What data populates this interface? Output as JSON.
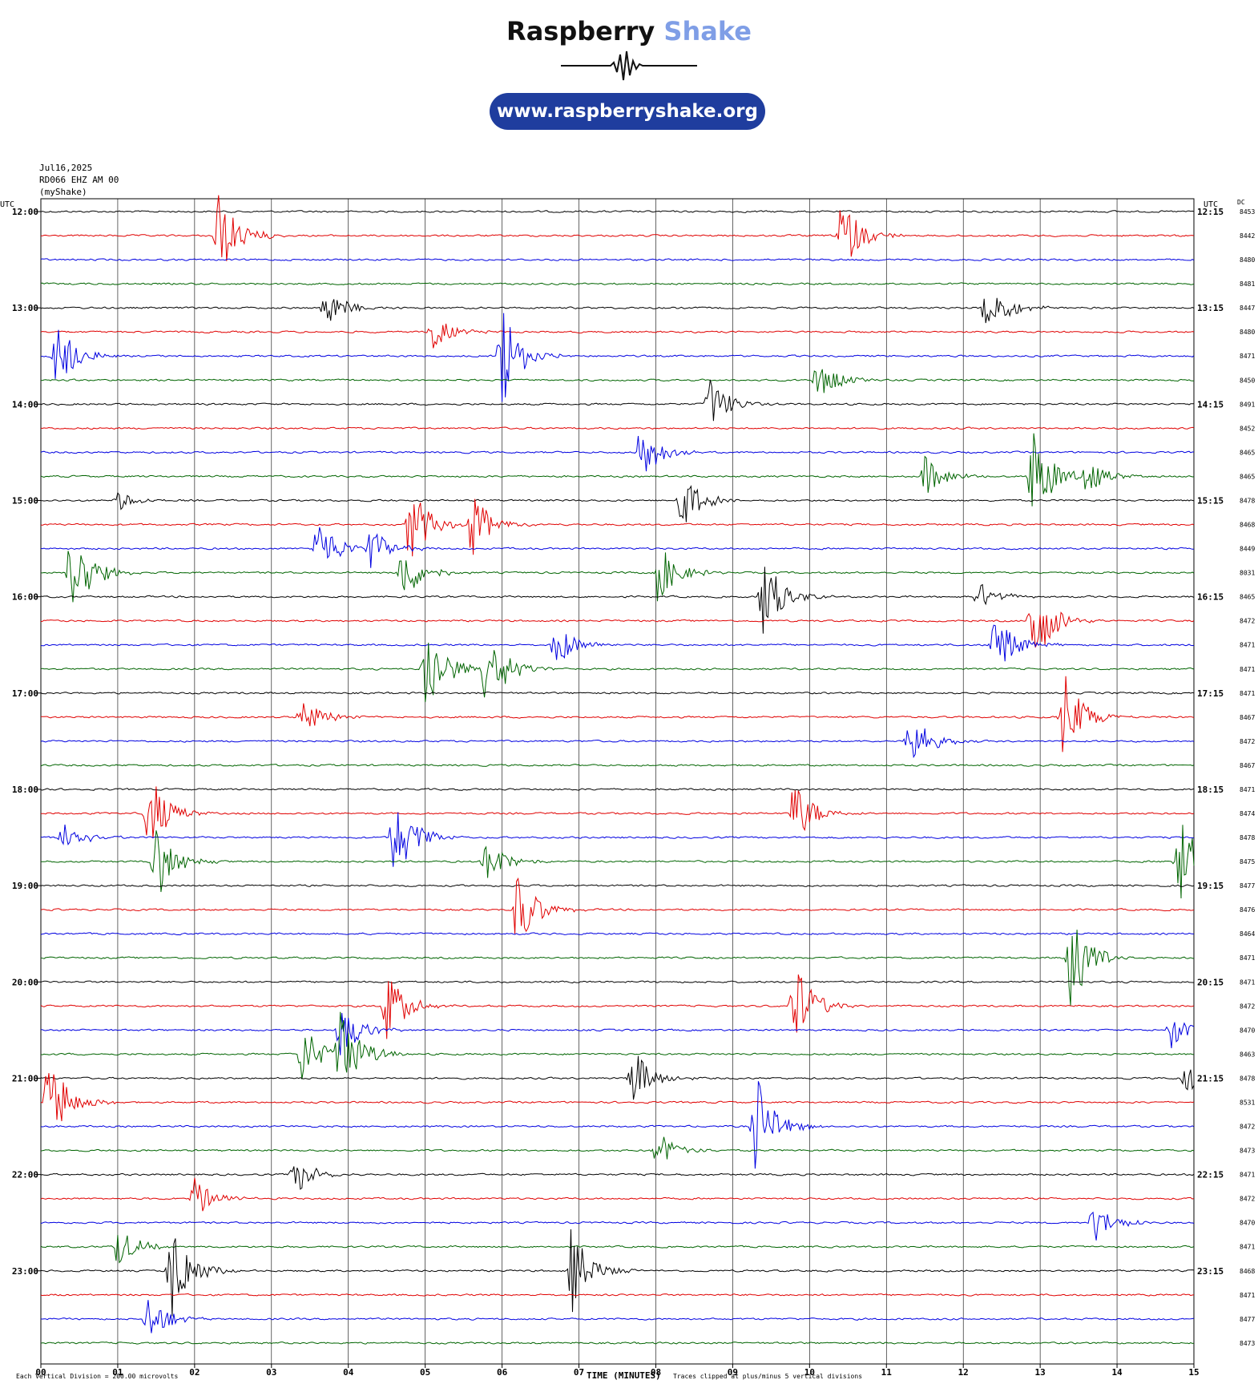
{
  "brand": {
    "name_part1": "Raspberry",
    "name_part2": "Shake",
    "url": "www.raspberryshake.org",
    "accent_color": "#7f9ee6",
    "pill_color": "#1f3d9e"
  },
  "station": {
    "date": "Jul16,2025",
    "channel": "RD066 EHZ AM 00",
    "source": "(myShake)"
  },
  "chart_data": {
    "type": "line",
    "title": "",
    "left_axis_label": "UTC",
    "right_axis_label": "UTC",
    "dc_label": "DC",
    "xlabel": "TIME (MINUTES)",
    "x_ticks": [
      "00",
      "01",
      "02",
      "03",
      "04",
      "05",
      "06",
      "07",
      "08",
      "09",
      "10",
      "11",
      "12",
      "13",
      "14",
      "15"
    ],
    "xlim": [
      0,
      15
    ],
    "scale_note": "Each Vertical Division = 200.00 microvolts",
    "clip_note": "Traces clipped at plus/minus 5 vertical divisions",
    "trace_colors": [
      "#000000",
      "#e00000",
      "#0000e0",
      "#006400"
    ],
    "left_hour_labels": [
      "12:00",
      "13:00",
      "14:00",
      "15:00",
      "16:00",
      "17:00",
      "18:00",
      "19:00",
      "20:00",
      "21:00",
      "22:00",
      "23:00"
    ],
    "right_hour_labels": [
      "12:15",
      "13:15",
      "14:15",
      "15:15",
      "16:15",
      "17:15",
      "18:15",
      "19:15",
      "20:15",
      "21:15",
      "22:15",
      "23:15"
    ],
    "dc_values": [
      "8453",
      "8442",
      "8480",
      "8481",
      "8447",
      "8480",
      "8471",
      "8450",
      "8491",
      "8452",
      "8465",
      "8465",
      "8478",
      "8468",
      "8449",
      "8031",
      "8465",
      "8472",
      "8471",
      "8471",
      "8471",
      "8467",
      "8472",
      "8467",
      "8471",
      "8474",
      "8478",
      "8475",
      "8477",
      "8476",
      "8464",
      "8471",
      "8471",
      "8472",
      "8470",
      "8463",
      "8478",
      "8531",
      "8472",
      "8473",
      "8471",
      "8472",
      "8470",
      "8471",
      "8468",
      "8471",
      "8477",
      "8473"
    ],
    "events": [
      {
        "row": 1,
        "minute": 2.3,
        "amplitude": 3.5
      },
      {
        "row": 1,
        "minute": 10.4,
        "amplitude": 3.0
      },
      {
        "row": 4,
        "minute": 3.7,
        "amplitude": 1.6
      },
      {
        "row": 4,
        "minute": 12.3,
        "amplitude": 2.5
      },
      {
        "row": 5,
        "minute": 5.1,
        "amplitude": 1.4
      },
      {
        "row": 6,
        "minute": 0.2,
        "amplitude": 2.8
      },
      {
        "row": 6,
        "minute": 6.0,
        "amplitude": 4.0
      },
      {
        "row": 7,
        "minute": 10.1,
        "amplitude": 1.6
      },
      {
        "row": 8,
        "minute": 8.7,
        "amplitude": 2.0
      },
      {
        "row": 10,
        "minute": 7.8,
        "amplitude": 2.4
      },
      {
        "row": 11,
        "minute": 11.5,
        "amplitude": 1.6
      },
      {
        "row": 11,
        "minute": 12.9,
        "amplitude": 4.0
      },
      {
        "row": 11,
        "minute": 13.6,
        "amplitude": 1.6
      },
      {
        "row": 12,
        "minute": 1.0,
        "amplitude": 0.8
      },
      {
        "row": 12,
        "minute": 8.3,
        "amplitude": 2.6
      },
      {
        "row": 13,
        "minute": 4.8,
        "amplitude": 3.2
      },
      {
        "row": 13,
        "minute": 5.6,
        "amplitude": 2.6
      },
      {
        "row": 14,
        "minute": 3.6,
        "amplitude": 2.6
      },
      {
        "row": 14,
        "minute": 4.3,
        "amplitude": 1.8
      },
      {
        "row": 15,
        "minute": 0.4,
        "amplitude": 4.0
      },
      {
        "row": 15,
        "minute": 4.7,
        "amplitude": 2.4
      },
      {
        "row": 15,
        "minute": 8.0,
        "amplitude": 2.6
      },
      {
        "row": 16,
        "minute": 9.4,
        "amplitude": 3.4
      },
      {
        "row": 16,
        "minute": 12.2,
        "amplitude": 1.2
      },
      {
        "row": 17,
        "minute": 12.9,
        "amplitude": 4.0
      },
      {
        "row": 18,
        "minute": 6.7,
        "amplitude": 1.8
      },
      {
        "row": 18,
        "minute": 12.4,
        "amplitude": 2.6
      },
      {
        "row": 19,
        "minute": 5.0,
        "amplitude": 4.0
      },
      {
        "row": 19,
        "minute": 5.8,
        "amplitude": 3.6
      },
      {
        "row": 21,
        "minute": 3.4,
        "amplitude": 1.6
      },
      {
        "row": 21,
        "minute": 13.3,
        "amplitude": 3.6
      },
      {
        "row": 22,
        "minute": 11.3,
        "amplitude": 2.4
      },
      {
        "row": 25,
        "minute": 1.4,
        "amplitude": 3.2
      },
      {
        "row": 25,
        "minute": 9.8,
        "amplitude": 2.6
      },
      {
        "row": 26,
        "minute": 0.3,
        "amplitude": 1.6
      },
      {
        "row": 26,
        "minute": 4.6,
        "amplitude": 3.6
      },
      {
        "row": 27,
        "minute": 1.5,
        "amplitude": 3.0
      },
      {
        "row": 27,
        "minute": 5.8,
        "amplitude": 1.8
      },
      {
        "row": 27,
        "minute": 14.8,
        "amplitude": 4.0
      },
      {
        "row": 29,
        "minute": 6.2,
        "amplitude": 3.2
      },
      {
        "row": 31,
        "minute": 13.4,
        "amplitude": 4.0
      },
      {
        "row": 33,
        "minute": 4.5,
        "amplitude": 2.8
      },
      {
        "row": 33,
        "minute": 9.8,
        "amplitude": 3.6
      },
      {
        "row": 34,
        "minute": 3.9,
        "amplitude": 2.2
      },
      {
        "row": 34,
        "minute": 14.7,
        "amplitude": 1.4
      },
      {
        "row": 35,
        "minute": 3.4,
        "amplitude": 2.4
      },
      {
        "row": 35,
        "minute": 3.9,
        "amplitude": 4.0
      },
      {
        "row": 36,
        "minute": 7.7,
        "amplitude": 2.4
      },
      {
        "row": 36,
        "minute": 14.9,
        "amplitude": 1.2
      },
      {
        "row": 37,
        "minute": 0.1,
        "amplitude": 4.0
      },
      {
        "row": 38,
        "minute": 9.3,
        "amplitude": 4.0
      },
      {
        "row": 39,
        "minute": 8.0,
        "amplitude": 1.6
      },
      {
        "row": 40,
        "minute": 3.3,
        "amplitude": 1.6
      },
      {
        "row": 41,
        "minute": 2.0,
        "amplitude": 1.6
      },
      {
        "row": 42,
        "minute": 13.7,
        "amplitude": 1.6
      },
      {
        "row": 43,
        "minute": 1.0,
        "amplitude": 1.6
      },
      {
        "row": 44,
        "minute": 1.7,
        "amplitude": 4.0
      },
      {
        "row": 44,
        "minute": 6.9,
        "amplitude": 3.4
      },
      {
        "row": 46,
        "minute": 1.4,
        "amplitude": 2.0
      }
    ]
  }
}
